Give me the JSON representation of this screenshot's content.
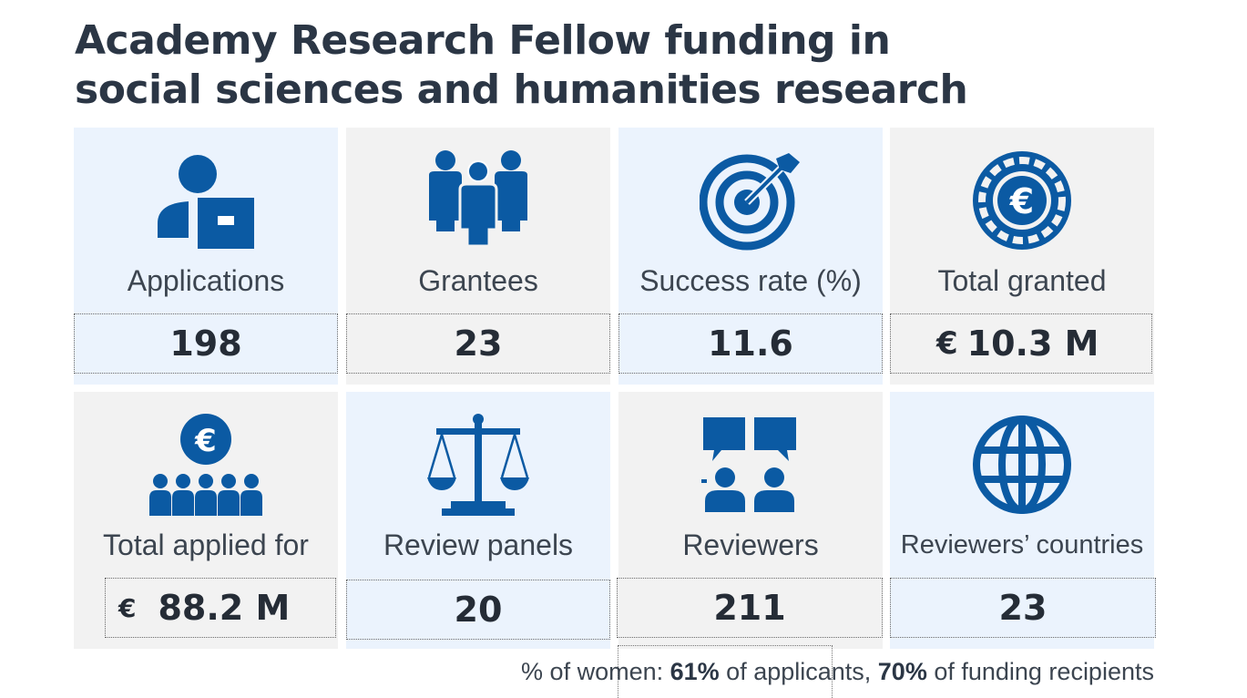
{
  "title": {
    "line1": "Academy Research Fellow funding in",
    "line2": "social sciences and humanities research"
  },
  "colors": {
    "icon": "#0b5aa3",
    "title": "#2b3645",
    "blue_card": "#ebf3fd",
    "grey_card": "#f2f2f2"
  },
  "cards": [
    {
      "label": "Applications",
      "value": "198",
      "icon": "applicant-icon"
    },
    {
      "label": "Grantees",
      "value": "23",
      "icon": "group-icon"
    },
    {
      "label": "Success rate (%)",
      "value": "11.6",
      "icon": "target-icon"
    },
    {
      "label": "Total granted",
      "currency": "€",
      "value": "10.3 M",
      "icon": "euro-coin-icon"
    },
    {
      "label": "Total applied for",
      "currency": "€",
      "value": "88.2 M",
      "icon": "euro-people-icon"
    },
    {
      "label": "Review panels",
      "value": "20",
      "icon": "scales-icon"
    },
    {
      "label": "Reviewers",
      "value": "211",
      "icon": "discussion-icon"
    },
    {
      "label": "Reviewers’ countries",
      "value": "23",
      "icon": "globe-icon"
    }
  ],
  "footer": {
    "prefix": "% of women: ",
    "applicants_pct": "61%",
    "applicants_text": " of applicants, ",
    "recipients_pct": "70%",
    "recipients_text": " of funding recipients"
  }
}
